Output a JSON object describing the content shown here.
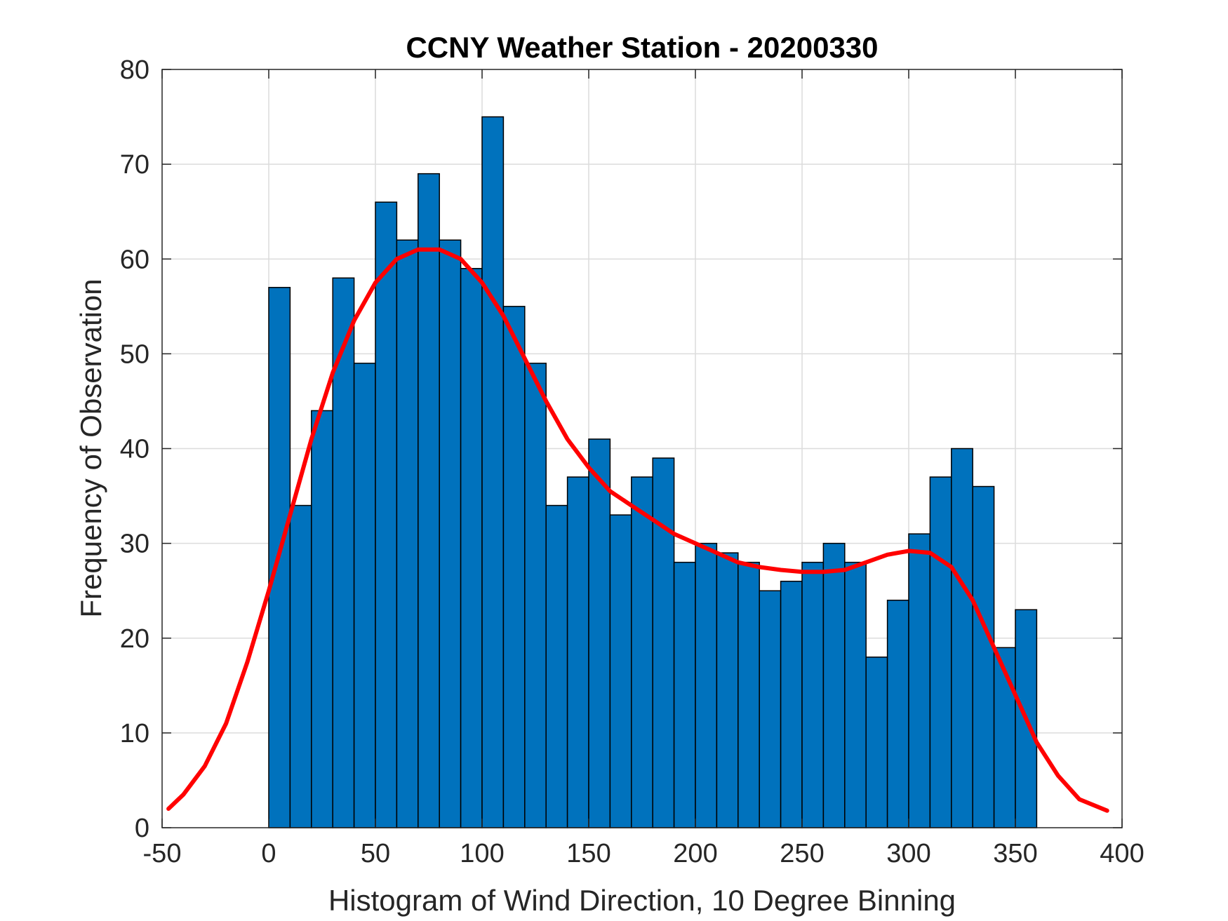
{
  "chart_data": {
    "type": "bar",
    "title": "CCNY Weather Station - 20200330",
    "xlabel": "Histogram of Wind Direction, 10 Degree Binning",
    "ylabel": "Frequency of Observation",
    "xlim": [
      -50,
      400
    ],
    "ylim": [
      0,
      80
    ],
    "xticks": [
      -50,
      0,
      50,
      100,
      150,
      200,
      250,
      300,
      350,
      400
    ],
    "yticks": [
      0,
      10,
      20,
      30,
      40,
      50,
      60,
      70,
      80
    ],
    "grid": true,
    "bin_width": 10,
    "bins": [
      {
        "x0": 0,
        "value": 57
      },
      {
        "x0": 10,
        "value": 34
      },
      {
        "x0": 20,
        "value": 44
      },
      {
        "x0": 30,
        "value": 58
      },
      {
        "x0": 40,
        "value": 49
      },
      {
        "x0": 50,
        "value": 66
      },
      {
        "x0": 60,
        "value": 62
      },
      {
        "x0": 70,
        "value": 69
      },
      {
        "x0": 80,
        "value": 62
      },
      {
        "x0": 90,
        "value": 59
      },
      {
        "x0": 100,
        "value": 75
      },
      {
        "x0": 110,
        "value": 55
      },
      {
        "x0": 120,
        "value": 49
      },
      {
        "x0": 130,
        "value": 34
      },
      {
        "x0": 140,
        "value": 37
      },
      {
        "x0": 150,
        "value": 41
      },
      {
        "x0": 160,
        "value": 33
      },
      {
        "x0": 170,
        "value": 37
      },
      {
        "x0": 180,
        "value": 39
      },
      {
        "x0": 190,
        "value": 28
      },
      {
        "x0": 200,
        "value": 30
      },
      {
        "x0": 210,
        "value": 29
      },
      {
        "x0": 220,
        "value": 28
      },
      {
        "x0": 230,
        "value": 25
      },
      {
        "x0": 240,
        "value": 26
      },
      {
        "x0": 250,
        "value": 28
      },
      {
        "x0": 260,
        "value": 30
      },
      {
        "x0": 270,
        "value": 28
      },
      {
        "x0": 280,
        "value": 18
      },
      {
        "x0": 290,
        "value": 24
      },
      {
        "x0": 300,
        "value": 31
      },
      {
        "x0": 310,
        "value": 37
      },
      {
        "x0": 320,
        "value": 40
      },
      {
        "x0": 330,
        "value": 36
      },
      {
        "x0": 340,
        "value": 19
      },
      {
        "x0": 350,
        "value": 23
      }
    ],
    "bar_color": "#0072BD",
    "bar_edge_color": "#000000",
    "fit_curve": {
      "color": "#FF0000",
      "x": [
        -47,
        -40,
        -30,
        -20,
        -10,
        0,
        10,
        20,
        30,
        40,
        50,
        60,
        70,
        80,
        90,
        100,
        110,
        120,
        130,
        140,
        150,
        160,
        170,
        180,
        190,
        200,
        210,
        220,
        230,
        240,
        250,
        260,
        270,
        280,
        290,
        300,
        310,
        320,
        330,
        340,
        350,
        360,
        370,
        380,
        393
      ],
      "y": [
        2,
        3.5,
        6.5,
        11,
        17.5,
        25,
        33,
        41,
        48,
        53.5,
        57.5,
        60,
        61,
        61,
        60,
        57.5,
        54,
        49.5,
        45,
        41,
        38,
        35.5,
        34,
        32.5,
        31,
        30,
        29,
        28,
        27.5,
        27.2,
        27,
        27,
        27.2,
        28,
        28.8,
        29.2,
        29,
        27.5,
        24,
        19,
        14,
        9,
        5.5,
        3,
        1.8
      ]
    }
  }
}
